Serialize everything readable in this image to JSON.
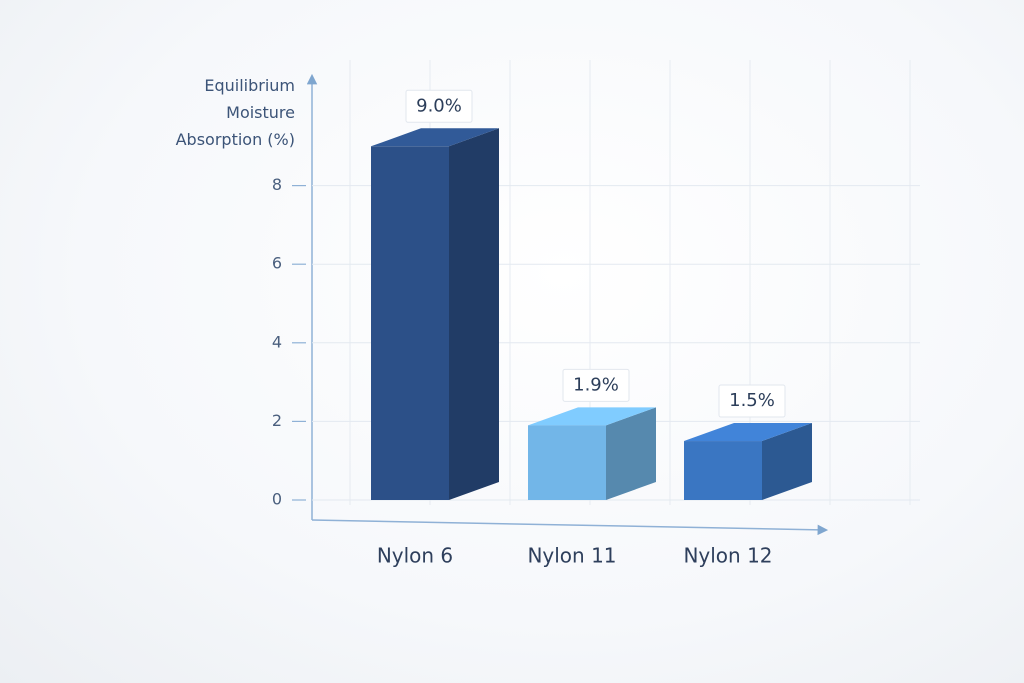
{
  "chart_data": {
    "type": "bar3d",
    "y_label": "Equilibrium Moisture Absorption (%)",
    "categories": [
      "Nylon 6",
      "Nylon 11",
      "Nylon 12"
    ],
    "values": [
      9.0,
      1.9,
      1.5
    ],
    "value_labels": [
      "9.0%",
      "1.9%",
      "1.5%"
    ],
    "colors": [
      "#2c5088",
      "#72b6e8",
      "#3a76c2"
    ],
    "ylim": [
      0,
      10
    ],
    "yticks": [
      0,
      2,
      4,
      6,
      8
    ],
    "grid": true
  }
}
